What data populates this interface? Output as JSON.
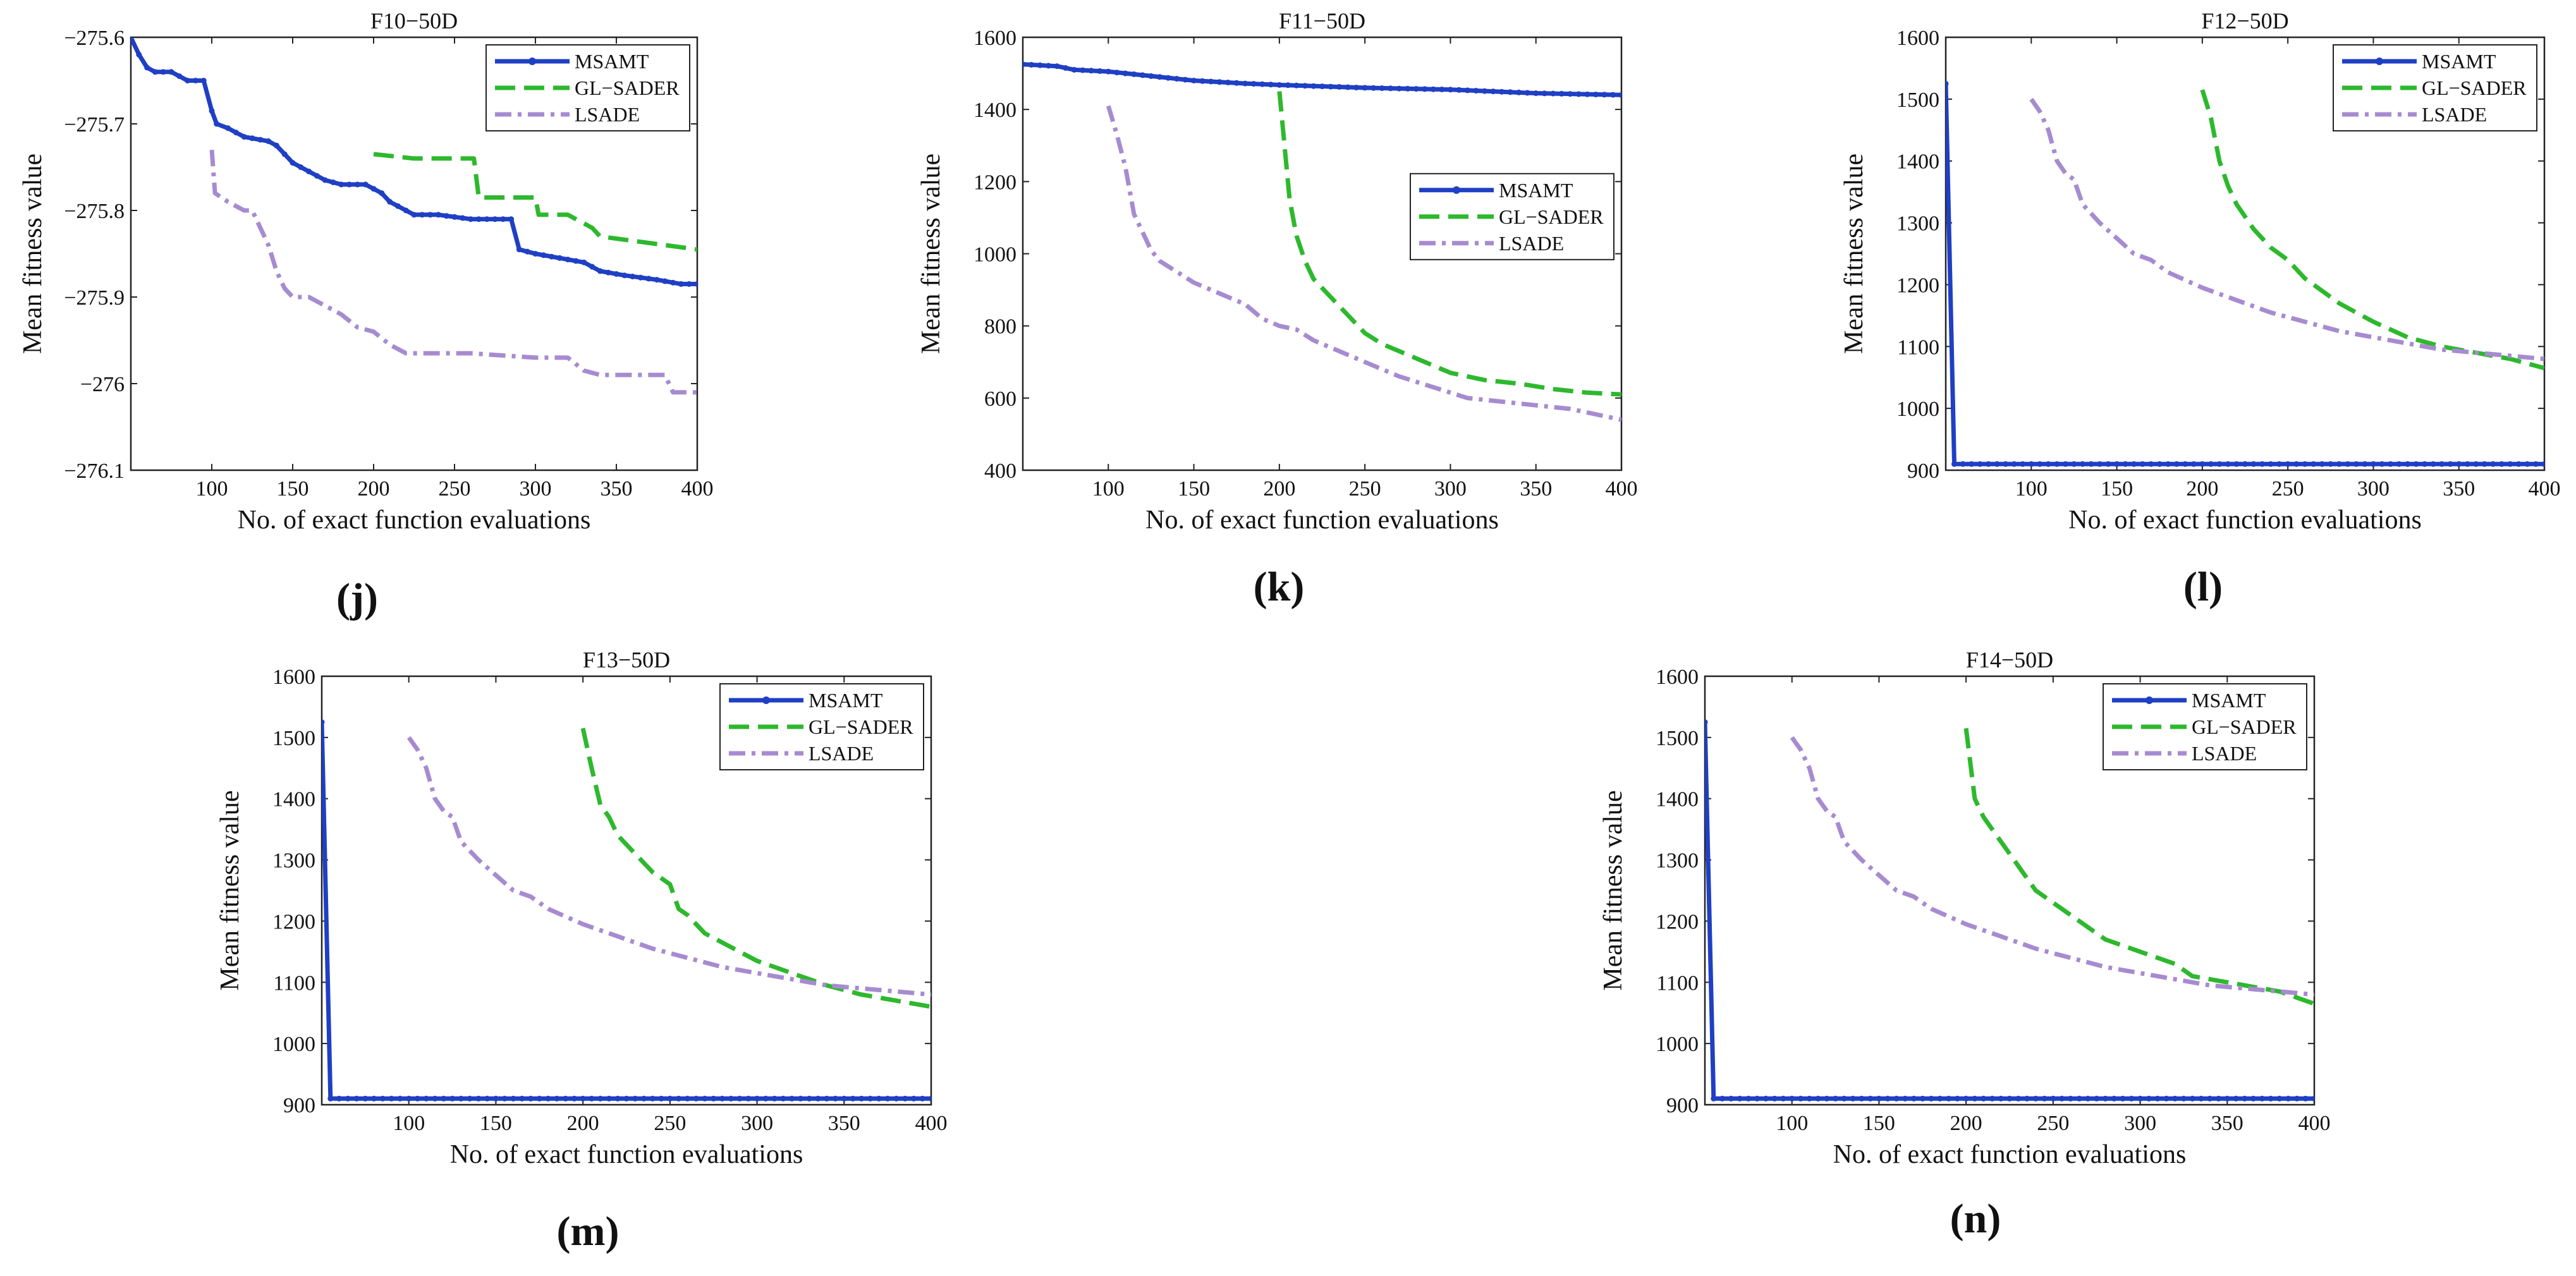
{
  "colors": {
    "msamt": "#1f3fc4",
    "glsader": "#2db82d",
    "lsade": "#a78bd0"
  },
  "chart_data": [
    {
      "type": "line",
      "panel_label": "(j)",
      "title": "F10−50D",
      "xlabel": "No. of exact function evaluations",
      "ylabel": "Mean fitness value",
      "xlim": [
        50,
        400
      ],
      "ylim": [
        -276.1,
        -275.6
      ],
      "xticks": [
        100,
        150,
        200,
        250,
        300,
        350,
        400
      ],
      "yticks": [
        -276.1,
        -276,
        -275.9,
        -275.8,
        -275.7,
        -275.6
      ],
      "ytick_labels": [
        "−276.1",
        "−276",
        "−275.9",
        "−275.8",
        "−275.7",
        "−275.6"
      ],
      "legend_position": "top-right",
      "series": [
        {
          "name": "MSAMT",
          "color_key": "msamt",
          "style": "solid-marker",
          "x": [
            50,
            55,
            60,
            65,
            75,
            85,
            95,
            100,
            103,
            110,
            120,
            135,
            140,
            145,
            150,
            160,
            170,
            180,
            195,
            205,
            210,
            220,
            225,
            240,
            260,
            285,
            290,
            300,
            315,
            330,
            340,
            355,
            375,
            390,
            400
          ],
          "y": [
            -275.6,
            -275.62,
            -275.635,
            -275.64,
            -275.64,
            -275.65,
            -275.65,
            -275.685,
            -275.7,
            -275.705,
            -275.715,
            -275.72,
            -275.725,
            -275.735,
            -275.745,
            -275.755,
            -275.765,
            -275.77,
            -275.77,
            -275.78,
            -275.79,
            -275.8,
            -275.805,
            -275.805,
            -275.81,
            -275.81,
            -275.845,
            -275.85,
            -275.855,
            -275.86,
            -275.87,
            -275.875,
            -275.88,
            -275.885,
            -275.885
          ]
        },
        {
          "name": "GL−SADER",
          "color_key": "glsader",
          "style": "dashed",
          "x": [
            200,
            225,
            262,
            265,
            300,
            302,
            320,
            335,
            340,
            380,
            400
          ],
          "y": [
            -275.735,
            -275.74,
            -275.74,
            -275.785,
            -275.785,
            -275.805,
            -275.805,
            -275.82,
            -275.83,
            -275.84,
            -275.845
          ]
        },
        {
          "name": "LSADE",
          "color_key": "lsade",
          "style": "dashdot",
          "x": [
            100,
            102,
            110,
            120,
            125,
            130,
            135,
            140,
            145,
            150,
            160,
            170,
            180,
            190,
            200,
            210,
            220,
            240,
            260,
            300,
            320,
            330,
            340,
            360,
            380,
            385,
            400
          ],
          "y": [
            -275.73,
            -275.78,
            -275.79,
            -275.8,
            -275.8,
            -275.82,
            -275.84,
            -275.87,
            -275.89,
            -275.9,
            -275.9,
            -275.91,
            -275.92,
            -275.935,
            -275.94,
            -275.955,
            -275.965,
            -275.965,
            -275.965,
            -275.97,
            -275.97,
            -275.985,
            -275.99,
            -275.99,
            -275.99,
            -276.01,
            -276.01
          ]
        }
      ]
    },
    {
      "type": "line",
      "panel_label": "(k)",
      "title": "F11−50D",
      "xlabel": "No. of exact function evaluations",
      "ylabel": "Mean fitness value",
      "xlim": [
        50,
        400
      ],
      "ylim": [
        400,
        1600
      ],
      "xticks": [
        100,
        150,
        200,
        250,
        300,
        350,
        400
      ],
      "yticks": [
        400,
        600,
        800,
        1000,
        1200,
        1400,
        1600
      ],
      "ytick_labels": [
        "400",
        "600",
        "800",
        "1000",
        "1200",
        "1400",
        "1600"
      ],
      "legend_position": "center-right",
      "series": [
        {
          "name": "MSAMT",
          "color_key": "msamt",
          "style": "solid-marker",
          "x": [
            50,
            70,
            80,
            100,
            120,
            150,
            180,
            200,
            250,
            300,
            350,
            400
          ],
          "y": [
            1525,
            1520,
            1510,
            1505,
            1495,
            1480,
            1472,
            1468,
            1460,
            1455,
            1445,
            1440
          ]
        },
        {
          "name": "GL−SADER",
          "color_key": "glsader",
          "style": "dashed",
          "x": [
            200,
            203,
            206,
            210,
            215,
            220,
            230,
            240,
            250,
            260,
            270,
            280,
            290,
            300,
            320,
            340,
            360,
            380,
            400
          ],
          "y": [
            1450,
            1300,
            1150,
            1050,
            980,
            930,
            880,
            830,
            780,
            750,
            730,
            710,
            690,
            670,
            650,
            640,
            625,
            615,
            610
          ]
        },
        {
          "name": "LSADE",
          "color_key": "lsade",
          "style": "dashdot",
          "x": [
            100,
            105,
            110,
            115,
            120,
            125,
            130,
            140,
            150,
            160,
            170,
            180,
            190,
            200,
            210,
            220,
            230,
            250,
            270,
            290,
            310,
            330,
            350,
            370,
            390,
            400
          ],
          "y": [
            1410,
            1330,
            1240,
            1110,
            1060,
            1010,
            980,
            950,
            920,
            900,
            880,
            860,
            820,
            800,
            790,
            760,
            740,
            700,
            660,
            630,
            600,
            590,
            580,
            570,
            550,
            540
          ]
        }
      ]
    },
    {
      "type": "line",
      "panel_label": "(l)",
      "title": "F12−50D",
      "xlabel": "No. of exact function evaluations",
      "ylabel": "Mean fitness value",
      "xlim": [
        50,
        400
      ],
      "ylim": [
        900,
        1600
      ],
      "xticks": [
        100,
        150,
        200,
        250,
        300,
        350,
        400
      ],
      "yticks": [
        900,
        1000,
        1100,
        1200,
        1300,
        1400,
        1500,
        1600
      ],
      "ytick_labels": [
        "900",
        "1000",
        "1100",
        "1200",
        "1300",
        "1400",
        "1500",
        "1600"
      ],
      "legend_position": "top-right",
      "series": [
        {
          "name": "MSAMT",
          "color_key": "msamt",
          "style": "solid-marker",
          "x": [
            50,
            55,
            100,
            150,
            200,
            250,
            300,
            350,
            400
          ],
          "y": [
            1525,
            910,
            910,
            910,
            910,
            910,
            910,
            910,
            910
          ]
        },
        {
          "name": "GL−SADER",
          "color_key": "glsader",
          "style": "dashed",
          "x": [
            200,
            205,
            210,
            215,
            220,
            230,
            240,
            250,
            260,
            270,
            280,
            290,
            300,
            320,
            340,
            360,
            380,
            400
          ],
          "y": [
            1515,
            1470,
            1400,
            1360,
            1330,
            1290,
            1260,
            1240,
            1210,
            1190,
            1170,
            1155,
            1140,
            1115,
            1100,
            1090,
            1080,
            1065
          ]
        },
        {
          "name": "LSADE",
          "color_key": "lsade",
          "style": "dashdot",
          "x": [
            100,
            105,
            110,
            115,
            120,
            125,
            130,
            140,
            150,
            160,
            170,
            180,
            200,
            220,
            240,
            260,
            280,
            300,
            320,
            340,
            360,
            380,
            400
          ],
          "y": [
            1500,
            1480,
            1450,
            1400,
            1380,
            1370,
            1330,
            1300,
            1275,
            1250,
            1240,
            1220,
            1195,
            1175,
            1155,
            1140,
            1125,
            1115,
            1105,
            1095,
            1090,
            1085,
            1080
          ]
        }
      ]
    },
    {
      "type": "line",
      "panel_label": "(m)",
      "title": "F13−50D",
      "xlabel": "No. of exact function evaluations",
      "ylabel": "Mean fitness value",
      "xlim": [
        50,
        400
      ],
      "ylim": [
        900,
        1600
      ],
      "xticks": [
        100,
        150,
        200,
        250,
        300,
        350,
        400
      ],
      "yticks": [
        900,
        1000,
        1100,
        1200,
        1300,
        1400,
        1500,
        1600
      ],
      "ytick_labels": [
        "900",
        "1000",
        "1100",
        "1200",
        "1300",
        "1400",
        "1500",
        "1600"
      ],
      "legend_position": "top-right",
      "series": [
        {
          "name": "MSAMT",
          "color_key": "msamt",
          "style": "solid-marker",
          "x": [
            50,
            55,
            100,
            150,
            200,
            250,
            300,
            350,
            400
          ],
          "y": [
            1525,
            910,
            910,
            910,
            910,
            910,
            910,
            910,
            910
          ]
        },
        {
          "name": "GL−SADER",
          "color_key": "glsader",
          "style": "dashed",
          "x": [
            200,
            205,
            210,
            215,
            220,
            230,
            240,
            250,
            255,
            260,
            270,
            280,
            290,
            300,
            320,
            340,
            360,
            380,
            400
          ],
          "y": [
            1515,
            1450,
            1390,
            1370,
            1340,
            1310,
            1280,
            1260,
            1220,
            1210,
            1180,
            1165,
            1150,
            1135,
            1115,
            1095,
            1080,
            1070,
            1060
          ]
        },
        {
          "name": "LSADE",
          "color_key": "lsade",
          "style": "dashdot",
          "x": [
            100,
            105,
            110,
            115,
            120,
            125,
            130,
            140,
            150,
            160,
            170,
            180,
            200,
            220,
            240,
            260,
            280,
            300,
            320,
            340,
            360,
            380,
            400
          ],
          "y": [
            1500,
            1480,
            1450,
            1400,
            1380,
            1370,
            1330,
            1300,
            1275,
            1250,
            1240,
            1220,
            1195,
            1175,
            1155,
            1140,
            1125,
            1115,
            1105,
            1095,
            1090,
            1085,
            1080
          ]
        }
      ]
    },
    {
      "type": "line",
      "panel_label": "(n)",
      "title": "F14−50D",
      "xlabel": "No. of exact function evaluations",
      "ylabel": "Mean fitness value",
      "xlim": [
        50,
        400
      ],
      "ylim": [
        900,
        1600
      ],
      "xticks": [
        100,
        150,
        200,
        250,
        300,
        350,
        400
      ],
      "yticks": [
        900,
        1000,
        1100,
        1200,
        1300,
        1400,
        1500,
        1600
      ],
      "ytick_labels": [
        "900",
        "1000",
        "1100",
        "1200",
        "1300",
        "1400",
        "1500",
        "1600"
      ],
      "legend_position": "top-right",
      "series": [
        {
          "name": "MSAMT",
          "color_key": "msamt",
          "style": "solid-marker",
          "x": [
            50,
            55,
            100,
            150,
            200,
            250,
            300,
            350,
            400
          ],
          "y": [
            1525,
            910,
            910,
            910,
            910,
            910,
            910,
            910,
            910
          ]
        },
        {
          "name": "GL−SADER",
          "color_key": "glsader",
          "style": "dashed",
          "x": [
            200,
            205,
            210,
            220,
            230,
            240,
            250,
            260,
            270,
            280,
            290,
            300,
            310,
            320,
            330,
            340,
            360,
            380,
            400
          ],
          "y": [
            1515,
            1400,
            1370,
            1330,
            1290,
            1250,
            1230,
            1210,
            1190,
            1170,
            1160,
            1150,
            1140,
            1130,
            1110,
            1105,
            1095,
            1085,
            1065
          ]
        },
        {
          "name": "LSADE",
          "color_key": "lsade",
          "style": "dashdot",
          "x": [
            100,
            105,
            110,
            115,
            120,
            125,
            130,
            140,
            150,
            160,
            170,
            180,
            200,
            220,
            240,
            260,
            280,
            300,
            320,
            340,
            360,
            380,
            400
          ],
          "y": [
            1500,
            1480,
            1450,
            1400,
            1380,
            1370,
            1330,
            1300,
            1275,
            1250,
            1240,
            1220,
            1195,
            1175,
            1155,
            1140,
            1125,
            1115,
            1105,
            1095,
            1090,
            1085,
            1080
          ]
        }
      ]
    }
  ]
}
